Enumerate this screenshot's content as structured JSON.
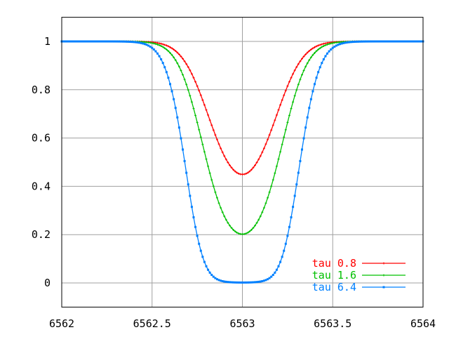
{
  "chart_data": {
    "type": "line",
    "title": "",
    "xlabel": "",
    "ylabel": "",
    "xlim": [
      6562,
      6564
    ],
    "ylim": [
      -0.1,
      1.1
    ],
    "grid": true,
    "legend_position": "bottom-right",
    "x_ticks": [
      {
        "value": 6562,
        "label": "6562"
      },
      {
        "value": 6562.5,
        "label": "6562.5"
      },
      {
        "value": 6563,
        "label": "6563"
      },
      {
        "value": 6563.5,
        "label": "6563.5"
      },
      {
        "value": 6564,
        "label": "6564"
      }
    ],
    "y_ticks": [
      {
        "value": 0,
        "label": "0"
      },
      {
        "value": 0.2,
        "label": "0.2"
      },
      {
        "value": 0.4,
        "label": "0.4"
      },
      {
        "value": 0.6,
        "label": "0.6"
      },
      {
        "value": 0.8,
        "label": "0.8"
      },
      {
        "value": 1,
        "label": "1"
      }
    ],
    "model": {
      "formula": "exp(-tau * exp(-((x - center)/width)^2))",
      "center": 6563,
      "width": 0.214,
      "x_start": 6562,
      "x_end": 6564,
      "x_step": 0.01
    },
    "series": [
      {
        "name": "tau 0.8",
        "tau": 0.8,
        "color": "#ff0000",
        "marker": "plus",
        "min_value": 0.449
      },
      {
        "name": "tau 1.6",
        "tau": 1.6,
        "color": "#00c000",
        "marker": "plus",
        "min_value": 0.202
      },
      {
        "name": "tau 6.4",
        "tau": 6.4,
        "color": "#0080ff",
        "marker": "square",
        "min_value": 0.002
      }
    ]
  }
}
